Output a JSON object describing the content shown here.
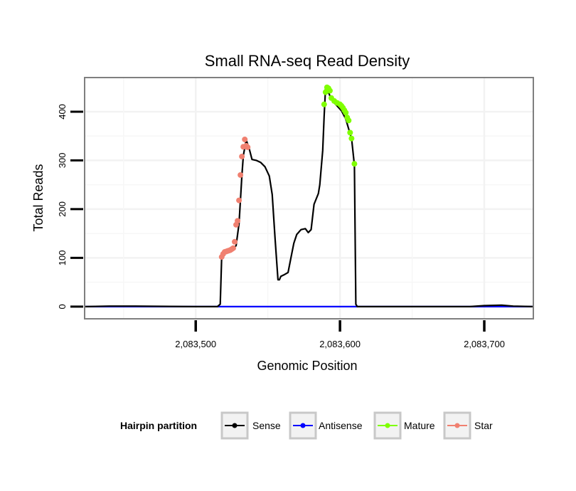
{
  "chart_data": {
    "type": "line",
    "title": "Small RNA-seq Read Density",
    "xlabel": "Genomic Position",
    "ylabel": "Total Reads",
    "xlim": [
      2083423,
      2083734
    ],
    "ylim": [
      -25,
      470
    ],
    "x_ticks": [
      2083500,
      2083600,
      2083700
    ],
    "x_tick_labels": [
      "2,083,500",
      "2,083,600",
      "2,083,700"
    ],
    "y_ticks": [
      0,
      100,
      200,
      300,
      400
    ],
    "y_tick_labels": [
      "0",
      "100",
      "200",
      "300",
      "400"
    ],
    "grid": true,
    "legend": {
      "position": "bottom",
      "title": "Hairpin partition",
      "entries": [
        {
          "label": "Sense",
          "color": "#000000"
        },
        {
          "label": "Antisense",
          "color": "#0000ff"
        },
        {
          "label": "Mature",
          "color": "#7fff00"
        },
        {
          "label": "Star",
          "color": "#f08070"
        }
      ]
    },
    "series": [
      {
        "name": "Sense",
        "color": "#000000",
        "kind": "line",
        "x": [
          2083423,
          2083440,
          2083458,
          2083500,
          2083515,
          2083517,
          2083518,
          2083520,
          2083525,
          2083528,
          2083530,
          2083531,
          2083532,
          2083533,
          2083535,
          2083537,
          2083539,
          2083542,
          2083545,
          2083548,
          2083551,
          2083553,
          2083555,
          2083557,
          2083558,
          2083559,
          2083561,
          2083564,
          2083566,
          2083568,
          2083570,
          2083573,
          2083576,
          2083578,
          2083580,
          2083582,
          2083585,
          2083586,
          2083588,
          2083589,
          2083590,
          2083591,
          2083592,
          2083594,
          2083597,
          2083601,
          2083604,
          2083607,
          2083608,
          2083610,
          2083611,
          2083612,
          2083640,
          2083690,
          2083700,
          2083712,
          2083720,
          2083734
        ],
        "y": [
          0,
          1,
          1,
          0,
          0,
          5,
          100,
          112,
          118,
          125,
          170,
          218,
          270,
          310,
          342,
          325,
          302,
          300,
          296,
          287,
          268,
          230,
          140,
          55,
          55,
          62,
          65,
          70,
          100,
          130,
          148,
          158,
          160,
          152,
          158,
          210,
          232,
          250,
          320,
          390,
          448,
          450,
          440,
          425,
          415,
          402,
          385,
          355,
          345,
          290,
          5,
          0,
          0,
          0,
          2,
          3,
          1,
          0
        ]
      },
      {
        "name": "Antisense",
        "color": "#0000ff",
        "kind": "line",
        "x": [
          2083423,
          2083700,
          2083734
        ],
        "y": [
          0,
          0,
          0
        ]
      },
      {
        "name": "Mature",
        "color": "#7fff00",
        "kind": "points",
        "x": [
          2083589,
          2083590,
          2083591,
          2083592,
          2083593,
          2083594,
          2083596,
          2083598,
          2083600,
          2083601,
          2083602,
          2083603,
          2083604,
          2083605,
          2083606,
          2083607,
          2083608,
          2083610
        ],
        "y": [
          415,
          440,
          450,
          448,
          443,
          428,
          422,
          418,
          415,
          412,
          408,
          403,
          398,
          388,
          382,
          357,
          345,
          293
        ]
      },
      {
        "name": "Star",
        "color": "#f08070",
        "kind": "points",
        "x": [
          2083518,
          2083519,
          2083520,
          2083521,
          2083522,
          2083523,
          2083524,
          2083525,
          2083526,
          2083527,
          2083528,
          2083529,
          2083530,
          2083531,
          2083532,
          2083533,
          2083534,
          2083535,
          2083536
        ],
        "y": [
          102,
          108,
          112,
          113,
          114,
          115,
          116,
          118,
          120,
          133,
          168,
          176,
          218,
          270,
          308,
          328,
          343,
          330,
          327
        ]
      }
    ]
  }
}
